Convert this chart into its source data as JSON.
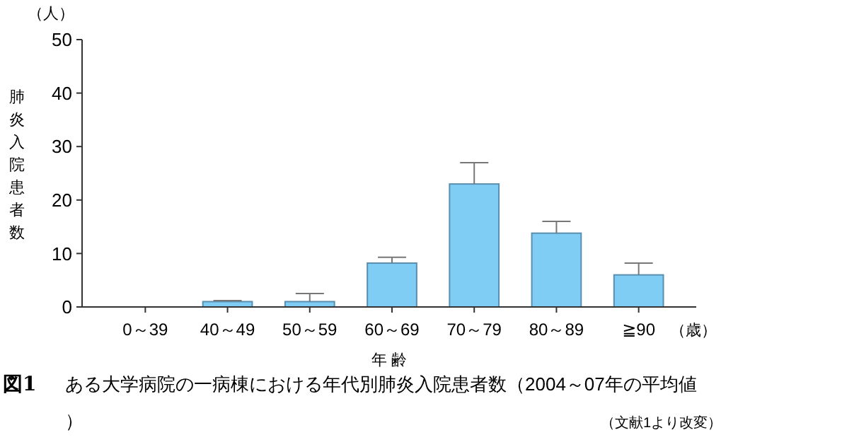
{
  "chart_data": {
    "type": "bar",
    "title": "ある大学病院の一病棟における年代別肺炎入院患者数（2004～07年の平均値）",
    "xlabel": "年 齢",
    "ylabel": "肺炎入院患者数",
    "categories": [
      "0～39",
      "40～49",
      "50～59",
      "60～69",
      "70～79",
      "80～89",
      "≧90"
    ],
    "values": [
      0,
      1,
      1,
      8.2,
      23,
      13.8,
      6
    ],
    "errors": [
      null,
      [
        1,
        1.2
      ],
      [
        1,
        2.5
      ],
      [
        8.2,
        9.3
      ],
      [
        23,
        27
      ],
      [
        13.8,
        16
      ],
      [
        6,
        8.2
      ]
    ],
    "color": "#7fcdf4",
    "ylim": [
      0,
      50
    ],
    "yticks": [
      0,
      10,
      20,
      30,
      40,
      50
    ],
    "grid": false,
    "annotations": [
      "図1",
      "（人）",
      "（歳）",
      "（文献1より改変）"
    ]
  }
}
